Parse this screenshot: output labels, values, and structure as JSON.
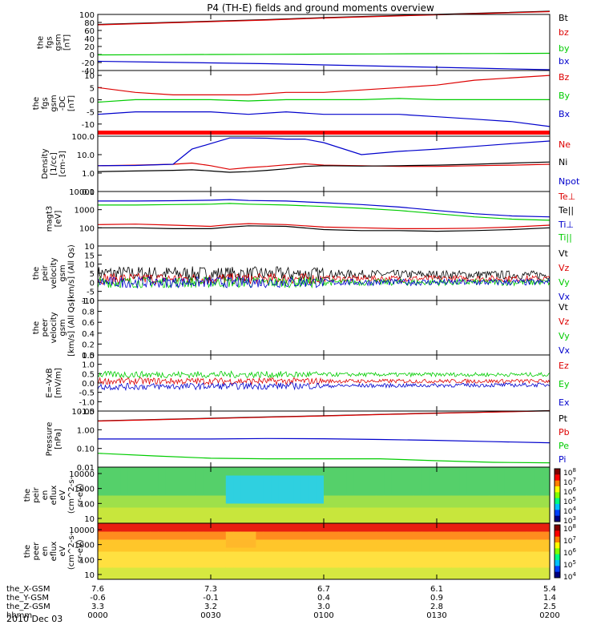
{
  "title": "P4 (TH-E) fields and ground moments overview",
  "colors": {
    "black": "#000000",
    "red": "#dd0000",
    "green": "#00cc00",
    "blue": "#0000cc"
  },
  "chart_data": [
    {
      "id": "fgs_gsm",
      "type": "line",
      "ylabel": [
        "the",
        "fgs",
        "gsm",
        "[nT]"
      ],
      "ylim": [
        -40,
        100
      ],
      "yticks": [
        "100",
        "80",
        "60",
        "40",
        "20",
        "0",
        "-20",
        "-40"
      ],
      "ytick_values": [
        100,
        80,
        60,
        40,
        20,
        0,
        -20,
        -40
      ],
      "x": [
        0,
        15,
        30,
        45,
        60,
        75,
        90,
        105,
        120
      ],
      "series": [
        {
          "name": "Bt",
          "color": "black",
          "values": [
            75,
            79,
            83,
            87,
            92,
            96,
            100,
            104,
            108
          ]
        },
        {
          "name": "bz",
          "color": "red",
          "values": [
            74,
            78,
            82,
            86,
            91,
            95,
            99,
            103,
            107
          ]
        },
        {
          "name": "by",
          "color": "green",
          "values": [
            -1,
            -0.5,
            0,
            0.5,
            1,
            1.5,
            2,
            2.5,
            3
          ]
        },
        {
          "name": "bx",
          "color": "blue",
          "values": [
            -17,
            -19,
            -21,
            -23,
            -26,
            -29,
            -32,
            -35,
            -38
          ]
        }
      ]
    },
    {
      "id": "fgs_gsm_dc",
      "type": "line",
      "ylabel": [
        "the",
        "fgs",
        "gsm",
        "-DC",
        "[nT]"
      ],
      "ylim": [
        -15,
        12
      ],
      "yticks": [
        "10",
        "5",
        "0",
        "-5",
        "-10"
      ],
      "ytick_values": [
        10,
        5,
        0,
        -5,
        -10
      ],
      "x": [
        0,
        10,
        20,
        30,
        40,
        50,
        60,
        70,
        80,
        90,
        100,
        110,
        120
      ],
      "series": [
        {
          "name": "Bz",
          "color": "red",
          "values": [
            5,
            3,
            2,
            2,
            2,
            3,
            3,
            4,
            5,
            6,
            8,
            9,
            10
          ]
        },
        {
          "name": "By",
          "color": "green",
          "values": [
            -1,
            0,
            0,
            0,
            -0.5,
            0,
            0,
            0,
            0.5,
            0,
            0,
            0,
            0
          ]
        },
        {
          "name": "Bx",
          "color": "blue",
          "values": [
            -6,
            -5,
            -5,
            -5,
            -6,
            -5,
            -6,
            -6,
            -6,
            -7,
            -8,
            -9,
            -11
          ]
        }
      ]
    },
    {
      "id": "density",
      "type": "line",
      "log": true,
      "ylabel": [
        "Density",
        "[1/cc]",
        "[cm-3]"
      ],
      "ylim": [
        0.1,
        100
      ],
      "yticks": [
        "100.0",
        "10.0",
        "1.0",
        "0.1"
      ],
      "ytick_values": [
        100,
        10,
        1,
        0.1
      ],
      "x": [
        0,
        10,
        20,
        25,
        30,
        35,
        40,
        45,
        50,
        55,
        60,
        70,
        80,
        90,
        100,
        110,
        120
      ],
      "series": [
        {
          "name": "Ne",
          "color": "red",
          "values": [
            2.5,
            2.7,
            3,
            3.5,
            2.5,
            1.6,
            2,
            2.3,
            2.8,
            3.2,
            2.7,
            2.5,
            2.3,
            2.3,
            2.5,
            2.7,
            3
          ]
        },
        {
          "name": "Ni",
          "color": "black",
          "values": [
            1.2,
            1.3,
            1.4,
            1.5,
            1.3,
            1.1,
            1.2,
            1.4,
            1.7,
            2.3,
            2.5,
            2.4,
            2.5,
            2.7,
            3,
            3.5,
            4
          ]
        },
        {
          "name": "Npot",
          "color": "blue",
          "values": [
            2.5,
            2.6,
            3,
            20,
            40,
            80,
            80,
            78,
            70,
            70,
            45,
            10,
            15,
            20,
            28,
            40,
            55
          ]
        }
      ]
    },
    {
      "id": "temperature",
      "type": "line",
      "log": true,
      "ylabel": [
        "magt3",
        "[eV]"
      ],
      "ylim": [
        10,
        10000
      ],
      "yticks": [
        "10000",
        "1000",
        "100",
        "10"
      ],
      "ytick_values": [
        10000,
        1000,
        100,
        10
      ],
      "x": [
        0,
        10,
        20,
        30,
        35,
        40,
        50,
        60,
        70,
        80,
        90,
        100,
        110,
        120
      ],
      "series": [
        {
          "name": "Te⊥",
          "color": "red",
          "values": [
            150,
            160,
            140,
            120,
            150,
            170,
            150,
            110,
            100,
            90,
            90,
            95,
            110,
            140
          ]
        },
        {
          "name": "Te||",
          "color": "black",
          "values": [
            100,
            100,
            90,
            90,
            110,
            130,
            120,
            80,
            70,
            70,
            65,
            70,
            80,
            100
          ]
        },
        {
          "name": "Ti⊥",
          "color": "blue",
          "values": [
            3000,
            3000,
            3100,
            3300,
            3600,
            3200,
            3000,
            2400,
            1900,
            1400,
            900,
            600,
            450,
            400
          ]
        },
        {
          "name": "Ti||",
          "color": "green",
          "values": [
            1800,
            1800,
            1900,
            2000,
            2200,
            2000,
            1800,
            1500,
            1200,
            900,
            600,
            400,
            300,
            260
          ]
        }
      ]
    },
    {
      "id": "peir_velocity",
      "type": "line",
      "ylabel": [
        "the",
        "peir",
        "velocity",
        "gsm",
        "[km/s] (All Qs)"
      ],
      "ylim": [
        -10,
        20
      ],
      "yticks": [
        "15",
        "10",
        "5",
        "0",
        "-5",
        "-10"
      ],
      "ytick_values": [
        15,
        10,
        5,
        0,
        -5,
        -10
      ],
      "x": [
        0,
        120
      ],
      "series": [
        {
          "name": "Vt",
          "color": "black",
          "values": [
            5,
            4
          ]
        },
        {
          "name": "Vz",
          "color": "red",
          "values": [
            2,
            2
          ]
        },
        {
          "name": "Vy",
          "color": "green",
          "values": [
            0,
            0
          ]
        },
        {
          "name": "Vx",
          "color": "blue",
          "values": [
            0,
            0
          ]
        }
      ]
    },
    {
      "id": "peer_velocity",
      "type": "line",
      "ylabel": [
        "the",
        "peer",
        "velocity",
        "gsm",
        "[km/s] (All Qs)"
      ],
      "ylim": [
        0,
        1
      ],
      "yticks": [
        "1.0",
        "0.8",
        "0.6",
        "0.4",
        "0.2",
        "0.0"
      ],
      "ytick_values": [
        1,
        0.8,
        0.6,
        0.4,
        0.2,
        0
      ],
      "x": [],
      "series": [
        {
          "name": "Vt",
          "color": "black",
          "values": []
        },
        {
          "name": "Vz",
          "color": "red",
          "values": []
        },
        {
          "name": "Vy",
          "color": "green",
          "values": []
        },
        {
          "name": "Vx",
          "color": "blue",
          "values": []
        }
      ]
    },
    {
      "id": "e_field",
      "type": "line",
      "ylabel": [
        "E=-VxB",
        "[mV/m]"
      ],
      "ylim": [
        -1.5,
        1.5
      ],
      "yticks": [
        "1.5",
        "1.0",
        "0.5",
        "0.0",
        "-0.5",
        "-1.0",
        "-1.5"
      ],
      "ytick_values": [
        1.5,
        1,
        0.5,
        0,
        -0.5,
        -1,
        -1.5
      ],
      "x": [
        0,
        120
      ],
      "series": [
        {
          "name": "Ez",
          "color": "red",
          "values": [
            0.1,
            0.1
          ]
        },
        {
          "name": "Ey",
          "color": "green",
          "values": [
            0.45,
            0.45
          ]
        },
        {
          "name": "Ex",
          "color": "blue",
          "values": [
            -0.2,
            -0.1
          ]
        }
      ]
    },
    {
      "id": "pressure",
      "type": "line",
      "log": true,
      "ylabel": [
        "Pressure",
        "[nPa]"
      ],
      "ylim": [
        0.01,
        10
      ],
      "yticks": [
        "10.00",
        "1.00",
        "0.10",
        "0.01"
      ],
      "ytick_values": [
        10,
        1,
        0.1,
        0.01
      ],
      "x": [
        0,
        15,
        30,
        45,
        60,
        75,
        90,
        105,
        120
      ],
      "series": [
        {
          "name": "Pt",
          "color": "black",
          "values": [
            3,
            3.5,
            4.1,
            4.8,
            5.6,
            6.6,
            7.8,
            9,
            10.5
          ]
        },
        {
          "name": "Pb",
          "color": "red",
          "values": [
            2.9,
            3.4,
            4,
            4.7,
            5.5,
            6.5,
            7.6,
            8.8,
            10.2
          ]
        },
        {
          "name": "Pe",
          "color": "green",
          "values": [
            0.055,
            0.04,
            0.03,
            0.028,
            0.028,
            0.028,
            0.022,
            0.018,
            0.017
          ]
        },
        {
          "name": "Pi",
          "color": "blue",
          "values": [
            0.32,
            0.32,
            0.32,
            0.34,
            0.33,
            0.3,
            0.27,
            0.23,
            0.2
          ]
        }
      ]
    },
    {
      "id": "peir_spectrogram",
      "type": "heatmap",
      "ylabel": [
        "the",
        "peir",
        "en",
        "eflux",
        "eV",
        "(cm^2-s-",
        "sr-eV)"
      ],
      "yticks": [
        "10000",
        "1000",
        "100",
        "10"
      ],
      "colorbar_ticks": [
        "10^8",
        "10^7",
        "10^6",
        "10^5",
        "10^4",
        "10^3"
      ]
    },
    {
      "id": "peer_spectrogram",
      "type": "heatmap",
      "ylabel": [
        "the",
        "peer",
        "en",
        "eflux",
        "eV",
        "(cm^2-s-",
        "sr-eV)"
      ],
      "yticks": [
        "10000",
        "1000",
        "100",
        "10"
      ],
      "colorbar_ticks": [
        "10^8",
        "10^7",
        "10^6",
        "10^5",
        "10^4"
      ]
    }
  ],
  "xaxis": {
    "rows": [
      {
        "label": "the_X-GSM",
        "values": [
          "7.6",
          "7.3",
          "6.7",
          "6.1",
          "5.4"
        ]
      },
      {
        "label": "the_Y-GSM",
        "values": [
          "-0.6",
          "-0.1",
          "0.4",
          "0.9",
          "1.4"
        ]
      },
      {
        "label": "the_Z-GSM",
        "values": [
          "3.3",
          "3.2",
          "3.0",
          "2.8",
          "2.5"
        ]
      },
      {
        "label": "hhmm",
        "values": [
          "0000",
          "0030",
          "0100",
          "0130",
          "0200"
        ]
      }
    ],
    "date": "2010 Dec 03"
  }
}
